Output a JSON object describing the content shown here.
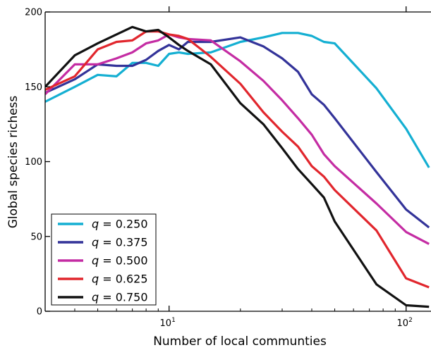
{
  "chart_data": {
    "type": "line",
    "title": "",
    "xlabel": "Number of local communties",
    "ylabel": "Global species richess",
    "xscale": "log",
    "xlim": [
      3,
      125
    ],
    "ylim": [
      0,
      200
    ],
    "x_ticks": [
      {
        "value": 10,
        "base": "10",
        "exp": "1"
      },
      {
        "value": 100,
        "base": "10",
        "exp": "2"
      }
    ],
    "y_ticks": [
      {
        "value": 0,
        "label": "0"
      },
      {
        "value": 50,
        "label": "50"
      },
      {
        "value": 100,
        "label": "100"
      },
      {
        "value": 150,
        "label": "150"
      },
      {
        "value": 200,
        "label": "200"
      }
    ],
    "legend_position": "bottom-left",
    "grid": false,
    "series": [
      {
        "name_label": "q = 0.250",
        "q_symbol": "q",
        "q_value": "0.250",
        "color": "#14afd2",
        "x": [
          3,
          4,
          5,
          6,
          7,
          8,
          9,
          10,
          11,
          12,
          15,
          20,
          25,
          30,
          35,
          40,
          45,
          50,
          75,
          100,
          125
        ],
        "y": [
          140,
          150,
          158,
          157,
          166,
          166,
          164,
          172,
          173,
          172,
          173,
          180,
          183,
          186,
          186,
          184,
          180,
          179,
          149,
          122,
          96
        ]
      },
      {
        "name_label": "q = 0.375",
        "q_symbol": "q",
        "q_value": "0.375",
        "color": "#333399",
        "x": [
          3,
          4,
          5,
          6,
          7,
          8,
          9,
          10,
          11,
          12,
          15,
          20,
          25,
          30,
          35,
          40,
          45,
          50,
          75,
          100,
          125
        ],
        "y": [
          146,
          155,
          165,
          164,
          164,
          168,
          174,
          178,
          175,
          180,
          180,
          183,
          177,
          169,
          160,
          145,
          138,
          129,
          93,
          68,
          56
        ]
      },
      {
        "name_label": "q = 0.500",
        "q_symbol": "q",
        "q_value": "0.500",
        "color": "#c42ca3",
        "x": [
          3,
          4,
          5,
          6,
          7,
          8,
          9,
          10,
          11,
          12,
          15,
          20,
          25,
          30,
          35,
          40,
          45,
          50,
          75,
          100,
          125
        ],
        "y": [
          145,
          165,
          165,
          169,
          173,
          179,
          181,
          185,
          183,
          182,
          181,
          167,
          154,
          141,
          129,
          118,
          105,
          97,
          72,
          53,
          45
        ]
      },
      {
        "name_label": "q = 0.625",
        "q_symbol": "q",
        "q_value": "0.625",
        "color": "#e1262d",
        "x": [
          3,
          4,
          5,
          6,
          7,
          8,
          9,
          10,
          11,
          12,
          15,
          20,
          25,
          30,
          35,
          40,
          45,
          50,
          75,
          100,
          125
        ],
        "y": [
          148,
          157,
          175,
          180,
          181,
          187,
          187,
          185,
          184,
          182,
          170,
          152,
          133,
          120,
          110,
          97,
          90,
          81,
          54,
          22,
          16
        ]
      },
      {
        "name_label": "q = 0.750",
        "q_symbol": "q",
        "q_value": "0.750",
        "color": "#111111",
        "x": [
          3,
          4,
          5,
          6,
          7,
          8,
          9,
          10,
          11,
          12,
          15,
          20,
          25,
          30,
          35,
          40,
          45,
          50,
          75,
          100,
          125
        ],
        "y": [
          150,
          171,
          179,
          185,
          190,
          187,
          188,
          183,
          178,
          174,
          165,
          139,
          125,
          109,
          95,
          85,
          76,
          60,
          18,
          4,
          3
        ]
      }
    ]
  }
}
